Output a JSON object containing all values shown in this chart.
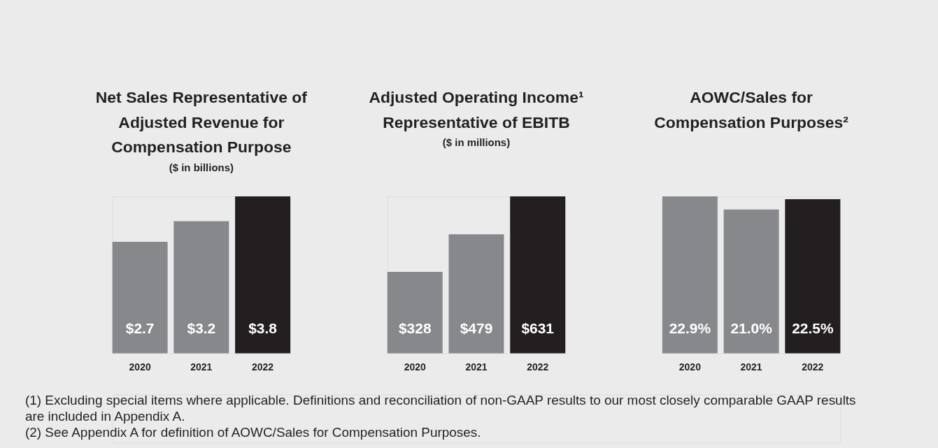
{
  "chart_data": [
    {
      "type": "bar",
      "title": "Net Sales Representative of\nAdjusted Revenue for\nCompensation Purpose",
      "subtitle": "($ in billions)",
      "categories": [
        "2020",
        "2021",
        "2022"
      ],
      "values": [
        2.7,
        3.2,
        3.8
      ],
      "colors": [
        "#87888c",
        "#87888c",
        "#231f20"
      ],
      "value_labels": [
        "$2.7",
        "$3.2",
        "$3.8"
      ],
      "tick_labels": "x"
    },
    {
      "type": "bar",
      "title": "Adjusted Operating Income¹\nRepresentative of EBITB",
      "subtitle": "($ in millions)",
      "categories": [
        "2020",
        "2021",
        "2022"
      ],
      "values": [
        328,
        479,
        631
      ],
      "colors": [
        "#87888c",
        "#87888c",
        "#231f20"
      ],
      "value_labels": [
        "$328",
        "$479",
        "$631"
      ],
      "tick_labels": "x"
    },
    {
      "type": "bar",
      "title": "AOWC/Sales for\nCompensation Purposes²",
      "categories": [
        "2020",
        "2021",
        "2022"
      ],
      "values": [
        22.9,
        21.0,
        22.5
      ],
      "colors": [
        "#87888c",
        "#87888c",
        "#231f20"
      ],
      "value_labels": [
        "22.9%",
        "21.0%",
        "22.5%"
      ],
      "tick_labels": "x",
      "annotations": [
        "(1) Excluding special items where applicable. Definitions and reconciliation of non-GAAP results to our most closely comparable GAAP results are included in Appendix A.",
        "(2) See Appendix A for definition of AOWC/Sales for Compensation Purposes."
      ]
    }
  ]
}
